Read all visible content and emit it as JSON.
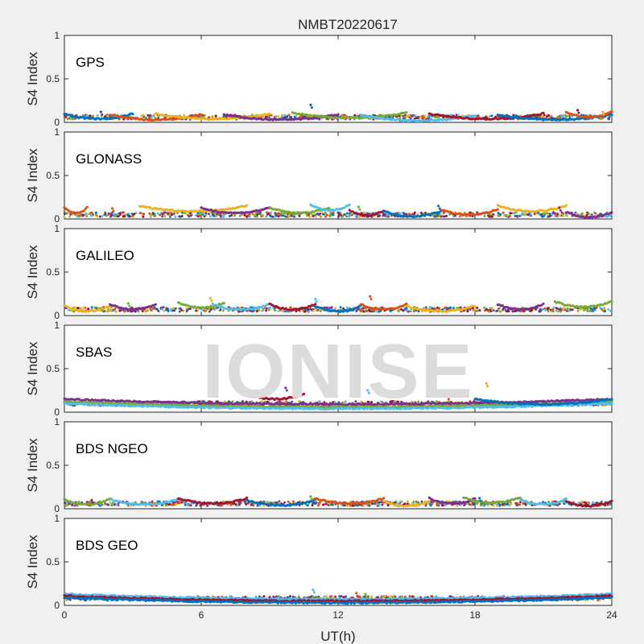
{
  "title": "NMBT20220617",
  "watermark": "IONISE",
  "chart_data": {
    "type": "scatter",
    "title": "NMBT20220617",
    "xlabel": "UT(h)",
    "ylabel": "S4 Index",
    "xlim": [
      0,
      24
    ],
    "xticks": [
      "0",
      "6",
      "12",
      "18",
      "24"
    ],
    "ylim": [
      0,
      1
    ],
    "yticks": [
      "0",
      "0.5",
      "1"
    ],
    "grid": false,
    "colors": [
      "#0072BD",
      "#D95319",
      "#EDB120",
      "#7E2F8E",
      "#77AC30",
      "#4DBEEE",
      "#A2142F"
    ],
    "panels": [
      {
        "label": "GPS",
        "baseline": 0.06,
        "tracks": [
          [
            0,
            3,
            0.07
          ],
          [
            2,
            6,
            0.06
          ],
          [
            4,
            9,
            0.07
          ],
          [
            7,
            12,
            0.06
          ],
          [
            10,
            15,
            0.08
          ],
          [
            13,
            18,
            0.05
          ],
          [
            16,
            21,
            0.07
          ],
          [
            19,
            24,
            0.06
          ],
          [
            22,
            24,
            0.09
          ]
        ],
        "spikes": [
          [
            10.8,
            0.2
          ],
          [
            1.6,
            0.12
          ],
          [
            22.5,
            0.14
          ],
          [
            23.6,
            0.12
          ]
        ]
      },
      {
        "label": "GLONASS",
        "baseline": 0.05,
        "tracks": [
          [
            0,
            1,
            0.1
          ],
          [
            3.3,
            8,
            0.12
          ],
          [
            6,
            9,
            0.1
          ],
          [
            9,
            11.6,
            0.1
          ],
          [
            10.8,
            12.5,
            0.13
          ],
          [
            12.5,
            14,
            0.07
          ],
          [
            14,
            16.5,
            0.06
          ],
          [
            16.5,
            19,
            0.08
          ],
          [
            19,
            22,
            0.12
          ],
          [
            22,
            24,
            0.05
          ]
        ],
        "spikes": [
          [
            2.1,
            0.12
          ],
          [
            12.9,
            0.14
          ],
          [
            16.4,
            0.15
          ],
          [
            21.7,
            0.13
          ]
        ]
      },
      {
        "label": "GALILEO",
        "baseline": 0.07,
        "tracks": [
          [
            0,
            2,
            0.08
          ],
          [
            2,
            4,
            0.1
          ],
          [
            5,
            7,
            0.12
          ],
          [
            6.5,
            9,
            0.1
          ],
          [
            9,
            11,
            0.1
          ],
          [
            11,
            13,
            0.08
          ],
          [
            13,
            15,
            0.1
          ],
          [
            15,
            18,
            0.08
          ],
          [
            19,
            21,
            0.1
          ],
          [
            21.5,
            24,
            0.13
          ]
        ],
        "spikes": [
          [
            6.4,
            0.2
          ],
          [
            11,
            0.19
          ],
          [
            13.4,
            0.22
          ],
          [
            2.8,
            0.14
          ]
        ]
      },
      {
        "label": "SBAS",
        "baseline": 0.1,
        "tracks": [
          [
            0,
            24,
            0.12
          ],
          [
            0,
            24,
            0.09
          ],
          [
            0,
            24,
            0.07
          ],
          [
            8,
            10.5,
            0.18
          ],
          [
            18,
            24,
            0.12
          ]
        ],
        "spikes": [
          [
            9.7,
            0.28
          ],
          [
            10.2,
            0.26
          ],
          [
            18.5,
            0.33
          ],
          [
            13.3,
            0.25
          ],
          [
            16.8,
            0.18
          ]
        ]
      },
      {
        "label": "BDS NGEO",
        "baseline": 0.06,
        "tracks": [
          [
            0,
            2,
            0.08
          ],
          [
            2,
            5,
            0.08
          ],
          [
            5,
            8,
            0.09
          ],
          [
            8,
            11,
            0.07
          ],
          [
            11,
            14,
            0.09
          ],
          [
            14,
            16,
            0.06
          ],
          [
            16,
            18,
            0.09
          ],
          [
            17.5,
            20,
            0.1
          ],
          [
            20,
            22,
            0.08
          ],
          [
            22,
            24,
            0.06
          ]
        ],
        "spikes": [
          [
            10.8,
            0.14
          ],
          [
            18.2,
            0.12
          ],
          [
            1.2,
            0.1
          ]
        ]
      },
      {
        "label": "BDS GEO",
        "baseline": 0.08,
        "tracks": [
          [
            0,
            24,
            0.1
          ],
          [
            0,
            24,
            0.08
          ],
          [
            0,
            24,
            0.06
          ]
        ],
        "spikes": [
          [
            10.9,
            0.18
          ],
          [
            12.8,
            0.14
          ],
          [
            13.2,
            0.13
          ]
        ]
      }
    ]
  }
}
